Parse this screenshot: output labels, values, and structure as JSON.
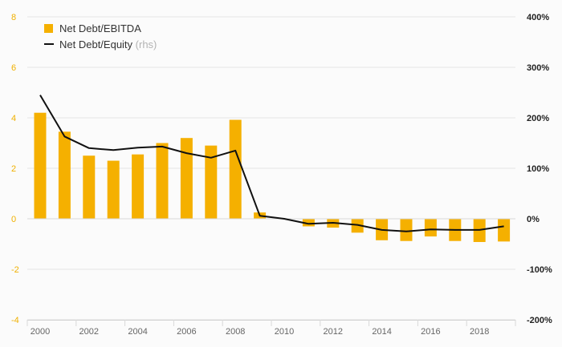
{
  "chart_data": {
    "type": "bar",
    "x": [
      2000,
      2001,
      2002,
      2003,
      2004,
      2005,
      2006,
      2007,
      2008,
      2009,
      2010,
      2011,
      2012,
      2013,
      2014,
      2015,
      2016,
      2017,
      2018,
      2019
    ],
    "x_tick_labels": [
      "2000",
      "2002",
      "2004",
      "2006",
      "2008",
      "2010",
      "2012",
      "2014",
      "2016",
      "2018"
    ],
    "series": [
      {
        "name": "Net Debt/EBITDA",
        "type": "bar",
        "axis": "left",
        "color": "#f5b000",
        "values": [
          4.2,
          3.45,
          2.5,
          2.3,
          2.55,
          3.0,
          3.2,
          2.9,
          3.92,
          0.25,
          0.0,
          -0.3,
          -0.35,
          -0.55,
          -0.85,
          -0.88,
          -0.7,
          -0.88,
          -0.92,
          -0.9
        ]
      },
      {
        "name": "Net Debt/Equity",
        "name_suffix": "(rhs)",
        "type": "line",
        "axis": "right",
        "color": "#111111",
        "values": [
          245,
          163,
          140,
          136,
          141,
          143,
          130,
          121,
          135,
          6,
          0,
          -10,
          -8,
          -12,
          -22,
          -25,
          -21,
          -22,
          -22,
          -15
        ]
      }
    ],
    "y_left": {
      "min": -4,
      "max": 8,
      "ticks": [
        -4,
        -2,
        0,
        2,
        4,
        6,
        8
      ],
      "color": "#f0b000"
    },
    "y_right": {
      "min": -200,
      "max": 400,
      "ticks": [
        "-200%",
        "-100%",
        "0%",
        "100%",
        "200%",
        "300%",
        "400%"
      ]
    },
    "grid": true,
    "legend_position": "top-left"
  }
}
